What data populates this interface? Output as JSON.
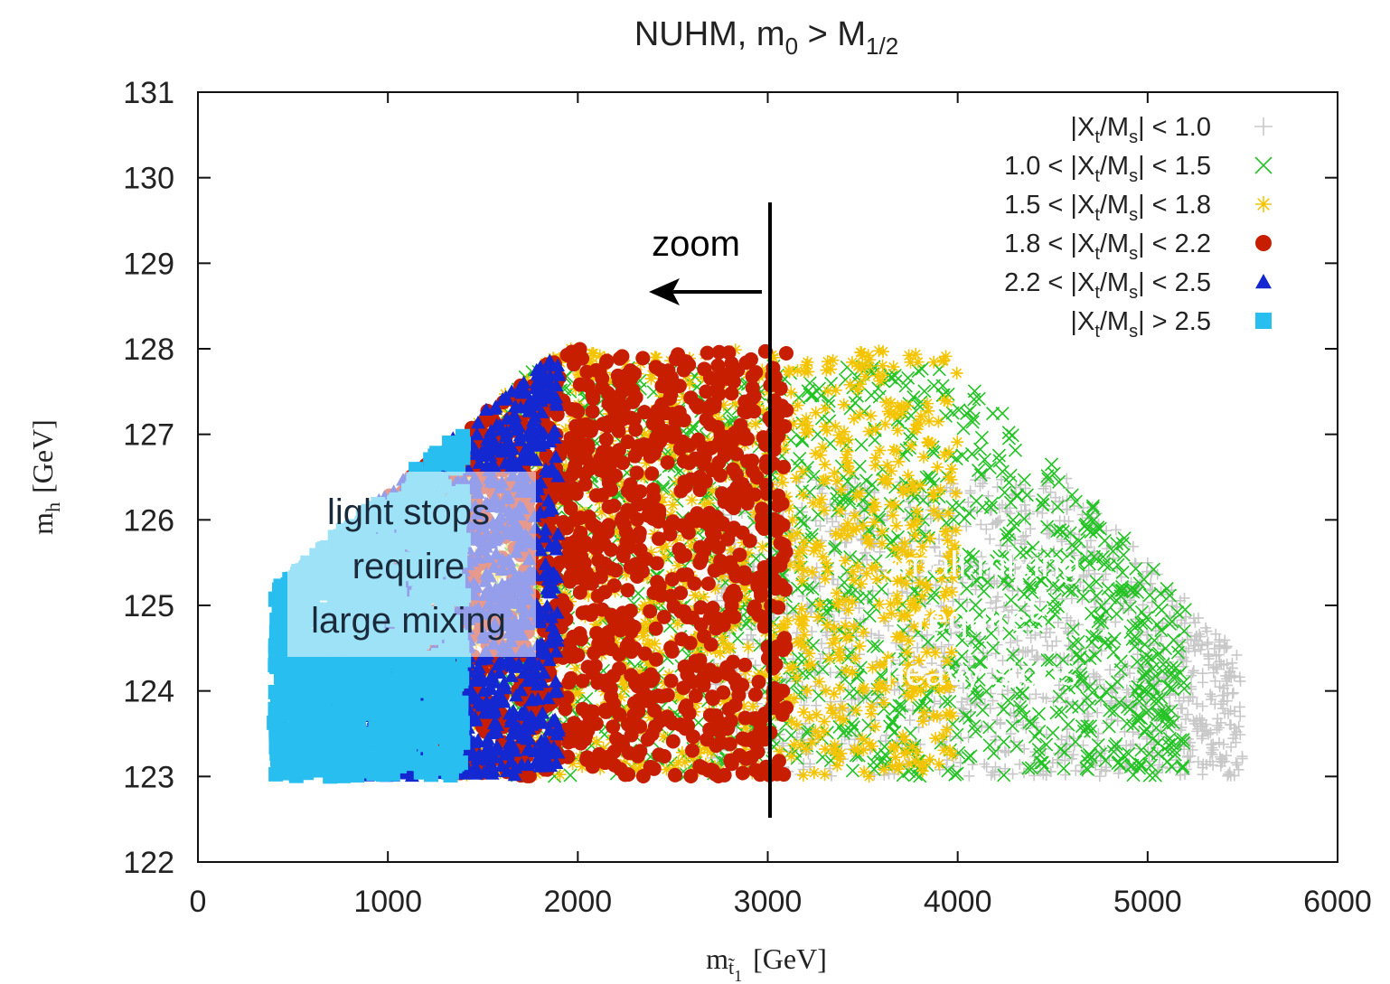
{
  "chart_data": {
    "type": "scatter",
    "title": "NUHM, m",
    "title_sub": "0",
    "title_rest": " > M",
    "title_sub2": "1/2",
    "xlabel": "m",
    "xlabel_sub": "t̃",
    "xlabel_sub2": "1",
    "xlabel_unit": "[GeV]",
    "ylabel": "m",
    "ylabel_sub": "h",
    "ylabel_unit": "[GeV]",
    "xlim": [
      0,
      6000
    ],
    "ylim": [
      122,
      131
    ],
    "xticks": [
      {
        "value": 0,
        "label": "0"
      },
      {
        "value": 1000,
        "label": "1000"
      },
      {
        "value": 2000,
        "label": "2000"
      },
      {
        "value": 3000,
        "label": "3000"
      },
      {
        "value": 4000,
        "label": "4000"
      },
      {
        "value": 5000,
        "label": "5000"
      },
      {
        "value": 6000,
        "label": "6000"
      }
    ],
    "yticks": [
      {
        "value": 122,
        "label": "122"
      },
      {
        "value": 123,
        "label": "123"
      },
      {
        "value": 124,
        "label": "124"
      },
      {
        "value": 125,
        "label": "125"
      },
      {
        "value": 126,
        "label": "126"
      },
      {
        "value": 127,
        "label": "127"
      },
      {
        "value": 128,
        "label": "128"
      },
      {
        "value": 129,
        "label": "129"
      },
      {
        "value": 130,
        "label": "130"
      },
      {
        "value": 131,
        "label": "131"
      }
    ],
    "legend_position": "top-right",
    "series": [
      {
        "name": "|Xt/Ms| < 1.0",
        "marker": "plus",
        "color": "#c8c8c8",
        "region": {
          "x_min": 2700,
          "x_max": 5500,
          "y_min": 123,
          "y_max": 126.5
        }
      },
      {
        "name": "1.0 < |Xt/Ms| < 1.5",
        "marker": "cross",
        "color": "#22c322",
        "region": {
          "x_min": 1600,
          "x_max": 5200,
          "y_min": 123,
          "y_max": 127.8
        }
      },
      {
        "name": "1.5 < |Xt/Ms| < 1.8",
        "marker": "star",
        "color": "#f5c400",
        "region": {
          "x_min": 1100,
          "x_max": 4000,
          "y_min": 123,
          "y_max": 128
        }
      },
      {
        "name": "1.8 < |Xt/Ms| < 2.2",
        "marker": "circle",
        "color": "#c81e00",
        "region": {
          "x_min": 1000,
          "x_max": 3100,
          "y_min": 123,
          "y_max": 128
        }
      },
      {
        "name": "2.2 < |Xt/Ms| < 2.5",
        "marker": "triangle",
        "color": "#1428d2",
        "region": {
          "x_min": 700,
          "x_max": 1900,
          "y_min": 123,
          "y_max": 128
        }
      },
      {
        "name": "|Xt/Ms| > 2.5",
        "marker": "square",
        "color": "#28bef0",
        "region": {
          "x_min": 400,
          "x_max": 1400,
          "y_min": 123,
          "y_max": 127
        }
      }
    ],
    "legend_entries": [
      {
        "pre": "|X",
        "sub1": "t",
        "mid": "/M",
        "sub2": "s",
        "post": "| < 1.0"
      },
      {
        "pre": "1.0 < |X",
        "sub1": "t",
        "mid": "/M",
        "sub2": "s",
        "post": "| < 1.5"
      },
      {
        "pre": "1.5 < |X",
        "sub1": "t",
        "mid": "/M",
        "sub2": "s",
        "post": "| < 1.8"
      },
      {
        "pre": "1.8 < |X",
        "sub1": "t",
        "mid": "/M",
        "sub2": "s",
        "post": "| < 2.2"
      },
      {
        "pre": "2.2 < |X",
        "sub1": "t",
        "mid": "/M",
        "sub2": "s",
        "post": "| < 2.5"
      },
      {
        "pre": "|X",
        "sub1": "t",
        "mid": "/M",
        "sub2": "s",
        "post": "| > 2.5"
      }
    ],
    "annotations": {
      "zoom_label": "zoom",
      "zoom_line_x": 3000,
      "light_stops": [
        "light stops",
        "require",
        "large mixing"
      ],
      "heavy_stops": [
        "small mixing",
        "requires",
        "heavy stops"
      ]
    }
  }
}
